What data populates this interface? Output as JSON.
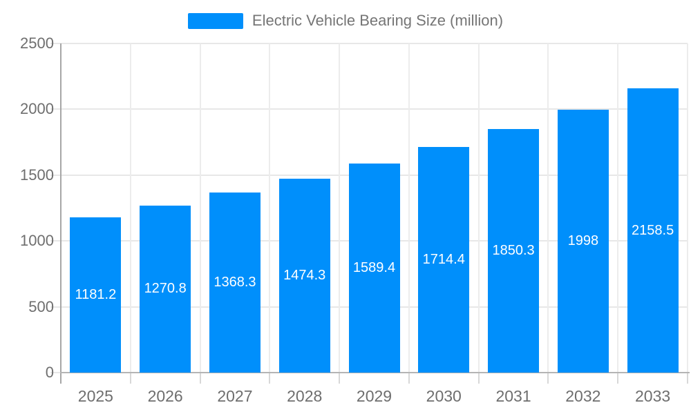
{
  "legend": {
    "label": "Electric Vehicle Bearing Size (million)"
  },
  "colors": {
    "bar": "#008FFB",
    "h_gridline": "#e7e7e7",
    "v_gridline": "#ececec",
    "y_axis_line": "#a6a6a6",
    "x_axis_line": "#b4b4b4",
    "axis_tick": "#d8d8d8",
    "axis_label_text": "#6e6e6e",
    "legend_text": "#757575",
    "data_label_text": "#ffffff",
    "background": "#ffffff"
  },
  "chart_data": {
    "type": "bar",
    "title": "Electric Vehicle Bearing Size (million)",
    "categories": [
      "2025",
      "2026",
      "2027",
      "2028",
      "2029",
      "2030",
      "2031",
      "2032",
      "2033"
    ],
    "values": [
      1181.2,
      1270.8,
      1368.3,
      1474.3,
      1589.4,
      1714.4,
      1850.3,
      1998,
      2158.5
    ],
    "value_labels": [
      "1181.2",
      "1270.8",
      "1368.3",
      "1474.3",
      "1589.4",
      "1714.4",
      "1850.3",
      "1998",
      "2158.5"
    ],
    "xlabel": "",
    "ylabel": "",
    "ylim": [
      0,
      2500
    ],
    "yticks": [
      0,
      500,
      1000,
      1500,
      2000,
      2500
    ],
    "grid": true,
    "legend_position": "top",
    "data_labels": "inside-center"
  }
}
